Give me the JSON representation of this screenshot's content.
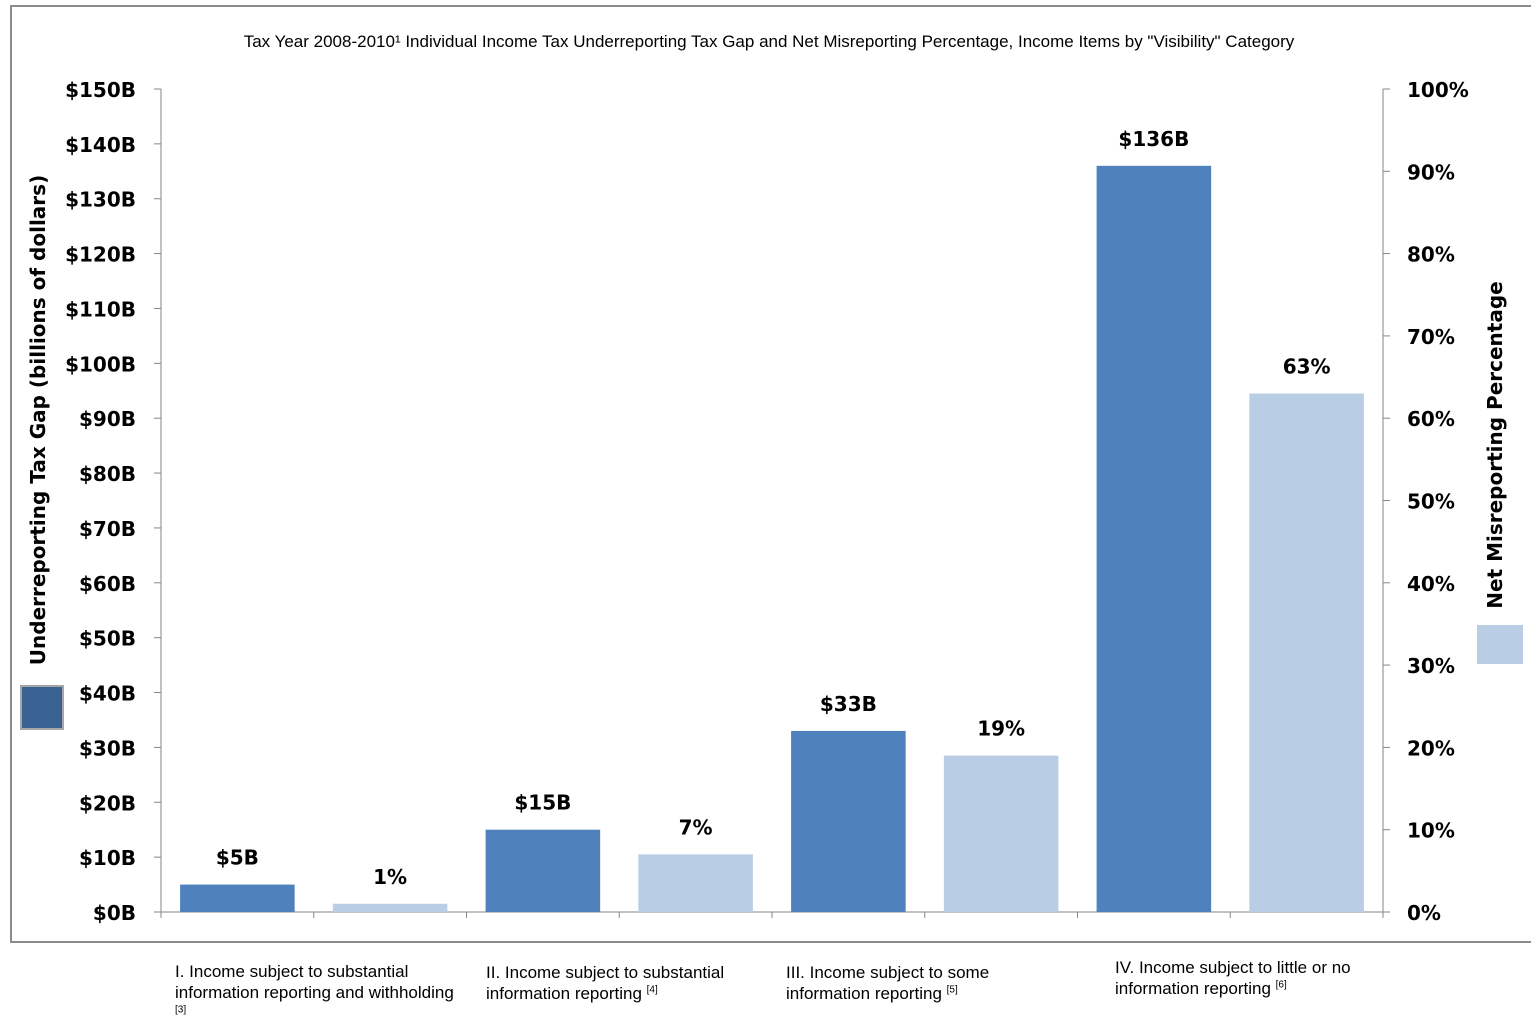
{
  "chart_data": {
    "type": "bar",
    "title": "Tax Year 2008-2010¹ Individual Income Tax Underreporting Tax Gap and Net Misreporting Percentage, Income Items by \"Visibility\" Category",
    "categories": [
      {
        "label": "I. Income subject to substantial information reporting and withholding",
        "note": "[3]"
      },
      {
        "label": "II. Income subject to substantial information reporting",
        "note": "[4]"
      },
      {
        "label": "III. Income subject to some information reporting",
        "note": "[5]"
      },
      {
        "label": "IV. Income subject to little or no information reporting",
        "note": "[6]"
      }
    ],
    "series": [
      {
        "name": "Underreporting Tax Gap (billions of dollars)",
        "axis": "left",
        "color": "#4f81bd",
        "values": [
          5,
          15,
          33,
          136
        ],
        "data_labels": [
          "$5B",
          "$15B",
          "$33B",
          "$136B"
        ]
      },
      {
        "name": "Net Misreporting Percentage",
        "axis": "right",
        "color": "#b9cde5",
        "values": [
          1,
          7,
          19,
          63
        ],
        "data_labels": [
          "1%",
          "7%",
          "19%",
          "63%"
        ]
      }
    ],
    "ylabel": "Underreporting  Tax Gap (billions of dollars)",
    "ylabel_right": "Net Misreporting Percentage",
    "ylim": [
      0,
      150
    ],
    "ylim_right": [
      0,
      100
    ],
    "yticks": [
      "$0B",
      "$10B",
      "$20B",
      "$30B",
      "$40B",
      "$50B",
      "$60B",
      "$70B",
      "$80B",
      "$90B",
      "$100B",
      "$110B",
      "$120B",
      "$130B",
      "$140B",
      "$150B"
    ],
    "yticks_right": [
      "0%",
      "10%",
      "20%",
      "30%",
      "40%",
      "50%",
      "60%",
      "70%",
      "80%",
      "90%",
      "100%"
    ],
    "legend_swatch_left_color": "#3a6293",
    "legend_swatch_right_color": "#b9cde5",
    "grid": false
  }
}
